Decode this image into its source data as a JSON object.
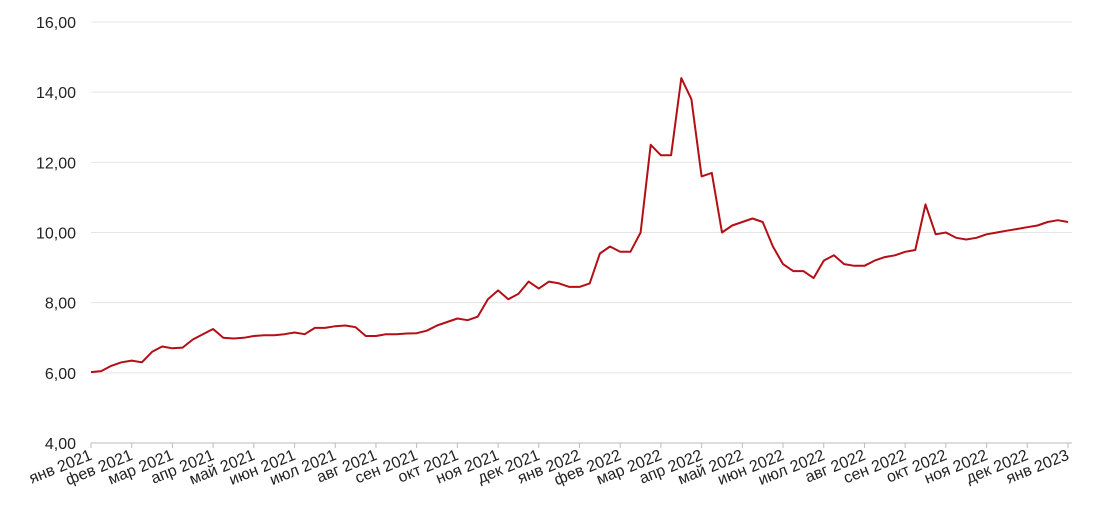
{
  "chart_data": {
    "type": "line",
    "categories": [
      "янв 2021",
      null,
      null,
      null,
      "фев 2021",
      null,
      null,
      null,
      "мар 2021",
      null,
      null,
      null,
      "апр 2021",
      null,
      null,
      null,
      "май 2021",
      null,
      null,
      null,
      "июн 2021",
      null,
      null,
      null,
      "июл 2021",
      null,
      null,
      null,
      "авг 2021",
      null,
      null,
      null,
      "сен 2021",
      null,
      null,
      null,
      "окт 2021",
      null,
      null,
      null,
      "ноя 2021",
      null,
      null,
      null,
      "дек 2021",
      null,
      null,
      null,
      "янв 2022",
      null,
      null,
      null,
      "фев 2022",
      null,
      null,
      null,
      "мар 2022",
      null,
      null,
      null,
      "апр 2022",
      null,
      null,
      null,
      "май 2022",
      null,
      null,
      null,
      "июн 2022",
      null,
      null,
      null,
      "июл 2022",
      null,
      null,
      null,
      "авг 2022",
      null,
      null,
      null,
      "сен 2022",
      null,
      null,
      null,
      "окт 2022",
      null,
      null,
      null,
      "ноя 2022",
      null,
      null,
      null,
      "дек 2022",
      null,
      null,
      null,
      "янв 2023"
    ],
    "values": [
      6.02,
      6.05,
      6.2,
      6.3,
      6.35,
      6.3,
      6.6,
      6.75,
      6.7,
      6.72,
      6.95,
      7.1,
      7.25,
      7.0,
      6.98,
      7.0,
      7.05,
      7.07,
      7.07,
      7.1,
      7.15,
      7.1,
      7.28,
      7.28,
      7.33,
      7.35,
      7.3,
      7.05,
      7.05,
      7.1,
      7.1,
      7.12,
      7.13,
      7.2,
      7.35,
      7.45,
      7.55,
      7.5,
      7.6,
      8.1,
      8.35,
      8.1,
      8.25,
      8.6,
      8.4,
      8.6,
      8.55,
      8.45,
      8.45,
      8.55,
      9.4,
      9.6,
      9.45,
      9.45,
      10.0,
      12.5,
      12.2,
      12.2,
      14.4,
      13.8,
      11.6,
      11.7,
      10.0,
      10.2,
      10.3,
      10.4,
      10.3,
      9.6,
      9.1,
      8.9,
      8.9,
      8.7,
      9.2,
      9.35,
      9.1,
      9.05,
      9.05,
      9.2,
      9.3,
      9.35,
      9.45,
      9.5,
      10.8,
      9.95,
      10.0,
      9.85,
      9.8,
      9.85,
      9.95,
      10.0,
      10.05,
      10.1,
      10.15,
      10.2,
      10.3,
      10.35,
      10.3
    ],
    "color": "#b30f16",
    "ylim": [
      4,
      16
    ],
    "yticks": [
      {
        "value": 4,
        "label": "4,00"
      },
      {
        "value": 6,
        "label": "6,00"
      },
      {
        "value": 8,
        "label": "8,00"
      },
      {
        "value": 10,
        "label": "10,00"
      },
      {
        "value": 12,
        "label": "12,00"
      },
      {
        "value": 14,
        "label": "14,00"
      },
      {
        "value": 16,
        "label": "16,00"
      }
    ],
    "grid": true
  }
}
